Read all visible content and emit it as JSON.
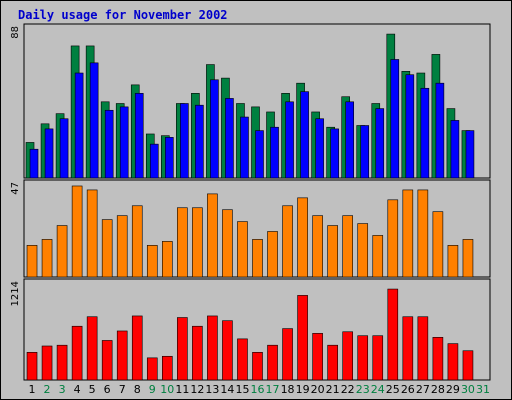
{
  "title": "Daily usage for November 2002",
  "colors": {
    "background": "#c0c0c0",
    "title": "#0000cc",
    "hits": "#008040",
    "files": "#0000ff",
    "panel2": "#ff8000",
    "panel3": "#ff0000",
    "weekday_label": "#000000",
    "weekend_label": "#008040"
  },
  "chart_data": [
    {
      "type": "bar",
      "panel": "top",
      "ymax_label": "88",
      "ylim": [
        0,
        88
      ],
      "categories": [
        "1",
        "2",
        "3",
        "4",
        "5",
        "6",
        "7",
        "8",
        "9",
        "10",
        "11",
        "12",
        "13",
        "14",
        "15",
        "16",
        "17",
        "18",
        "19",
        "20",
        "21",
        "22",
        "23",
        "24",
        "25",
        "26",
        "27",
        "28",
        "29",
        "30",
        "31"
      ],
      "weekend_days": [
        "2",
        "3",
        "9",
        "10",
        "16",
        "17",
        "23",
        "24",
        "30",
        "31"
      ],
      "series": [
        {
          "values": [
            21,
            32,
            38,
            78,
            78,
            45,
            44,
            55,
            26,
            25,
            44,
            50,
            67,
            59,
            44,
            42,
            39,
            50,
            56,
            39,
            30,
            48,
            31,
            44,
            85,
            63,
            62,
            73,
            41,
            28,
            0
          ]
        },
        {
          "values": [
            17,
            29,
            35,
            62,
            68,
            40,
            42,
            50,
            20,
            24,
            44,
            43,
            58,
            47,
            36,
            28,
            30,
            45,
            51,
            35,
            29,
            45,
            31,
            41,
            70,
            61,
            53,
            56,
            34,
            28,
            0
          ]
        }
      ]
    },
    {
      "type": "bar",
      "panel": "middle",
      "ymax_label": "47",
      "ylim": [
        0,
        47
      ],
      "categories": [
        "1",
        "2",
        "3",
        "4",
        "5",
        "6",
        "7",
        "8",
        "9",
        "10",
        "11",
        "12",
        "13",
        "14",
        "15",
        "16",
        "17",
        "18",
        "19",
        "20",
        "21",
        "22",
        "23",
        "24",
        "25",
        "26",
        "27",
        "28",
        "29",
        "30",
        "31"
      ],
      "values": [
        16,
        19,
        26,
        46,
        44,
        29,
        31,
        36,
        16,
        18,
        35,
        35,
        42,
        34,
        28,
        19,
        23,
        36,
        40,
        31,
        26,
        31,
        27,
        21,
        39,
        44,
        44,
        33,
        16,
        19,
        0
      ]
    },
    {
      "type": "bar",
      "panel": "bottom",
      "ymax_label": "1214",
      "ylim": [
        0,
        1214
      ],
      "categories": [
        "1",
        "2",
        "3",
        "4",
        "5",
        "6",
        "7",
        "8",
        "9",
        "10",
        "11",
        "12",
        "13",
        "14",
        "15",
        "16",
        "17",
        "18",
        "19",
        "20",
        "21",
        "22",
        "23",
        "24",
        "25",
        "26",
        "27",
        "28",
        "29",
        "30",
        "31"
      ],
      "values": [
        350,
        430,
        440,
        680,
        800,
        500,
        620,
        810,
        280,
        300,
        790,
        680,
        810,
        750,
        520,
        350,
        440,
        650,
        1070,
        590,
        440,
        610,
        560,
        560,
        1150,
        800,
        800,
        540,
        460,
        370,
        0
      ]
    }
  ]
}
